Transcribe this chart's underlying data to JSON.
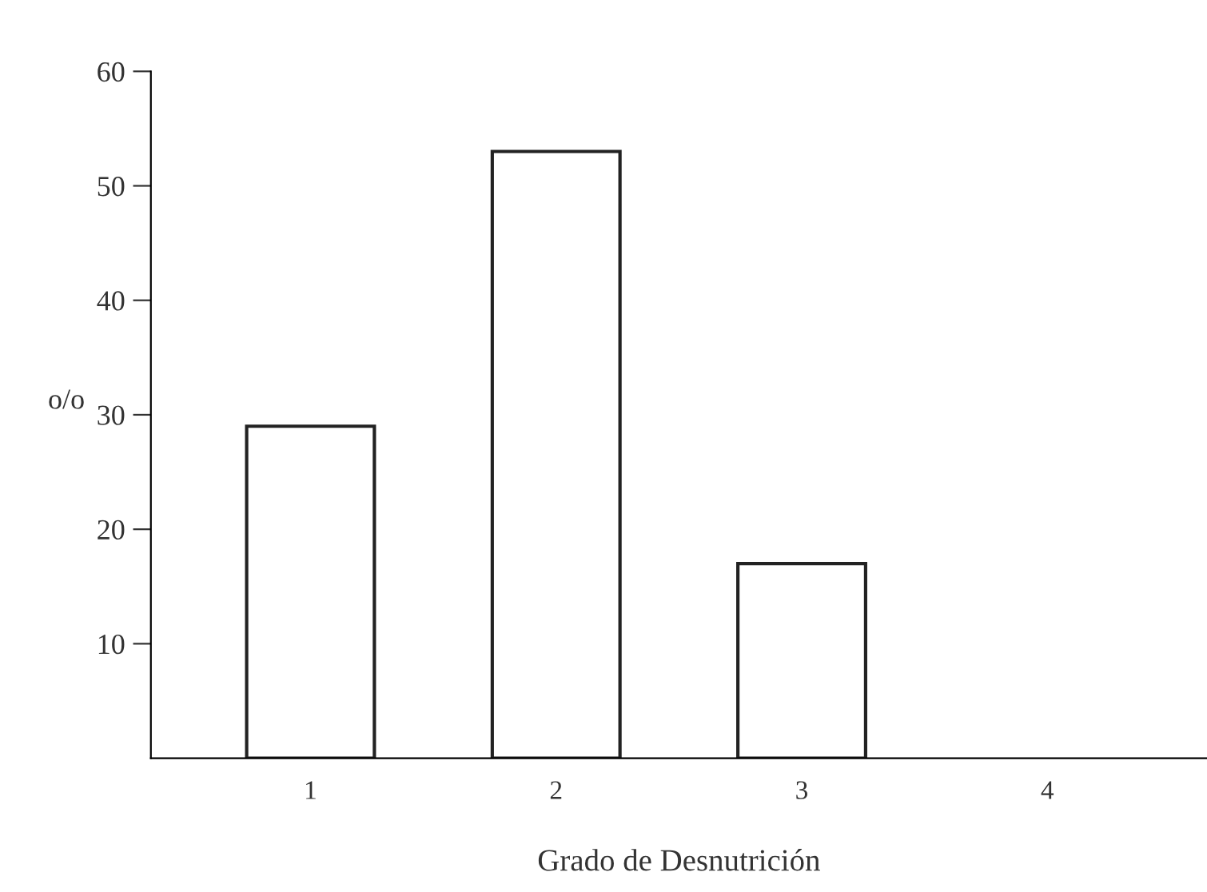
{
  "chart_data": {
    "type": "bar",
    "categories": [
      "1",
      "2",
      "3",
      "4"
    ],
    "values": [
      29,
      53,
      17,
      null
    ],
    "color": "#ffffff",
    "ylim": [
      0,
      60
    ],
    "yticks": [
      10,
      20,
      30,
      40,
      50,
      60
    ],
    "ylabel": "o/o",
    "xlabel": "Grado de Desnutrición",
    "grid": false
  }
}
